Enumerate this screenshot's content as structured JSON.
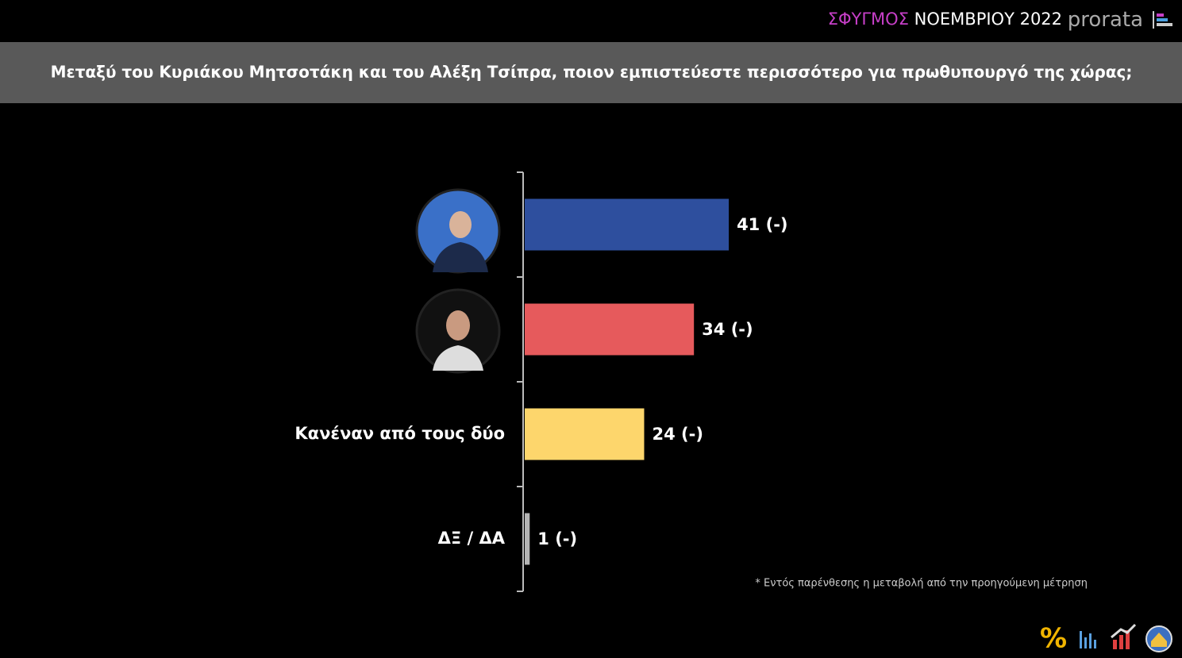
{
  "chart_data": {
    "type": "bar",
    "orientation": "horizontal",
    "brand": "ΣΦΥΓΜΟΣ",
    "edition": "ΝΟΕΜΒΡΙΟΥ 2022",
    "publisher": "prorata",
    "title": "Μεταξύ του Κυριάκου Μητσοτάκη και του Αλέξη Τσίπρα, ποιον εμπιστεύεστε περισσότερο για πρωθυπουργό της χώρας;",
    "categories": [
      null,
      null,
      "Κανέναν από τους δύο",
      "ΔΞ / ΔΑ"
    ],
    "values": [
      41,
      34,
      24,
      1
    ],
    "value_labels": [
      "41 (-)",
      "34 (-)",
      "24 (-)",
      "1 (-)"
    ],
    "colors": [
      "#2e4f9e",
      "#e65a5c",
      "#fdd66c",
      "#b4b4b4"
    ],
    "footnote": "* Εντός παρένθεσης η μεταβολή από την προηγούμενη μέτρηση"
  }
}
